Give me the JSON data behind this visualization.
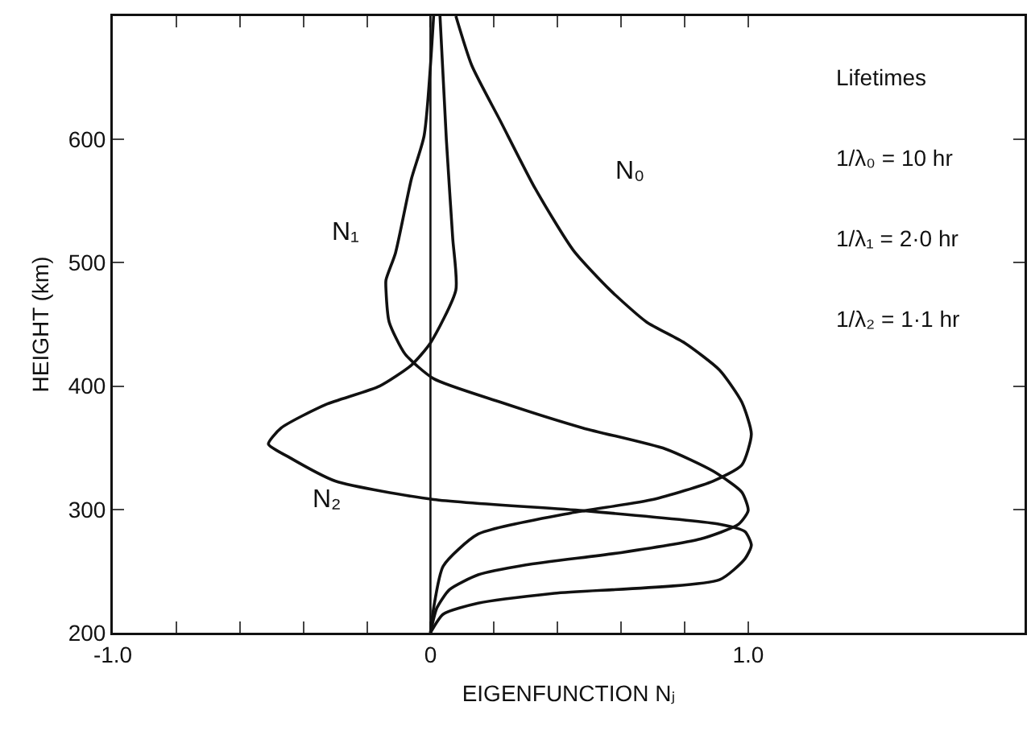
{
  "chart_data": {
    "type": "line",
    "xlabel": "EIGENFUNCTION Nⱼ",
    "ylabel": "HEIGHT (km)",
    "xlim": [
      -1.0,
      1.87
    ],
    "ylim": [
      200,
      700
    ],
    "xticks": [
      {
        "value": -1.0,
        "label": "-1.0"
      },
      {
        "value": -0.8,
        "label": null
      },
      {
        "value": -0.6,
        "label": null
      },
      {
        "value": -0.4,
        "label": null
      },
      {
        "value": -0.2,
        "label": null
      },
      0,
      {
        "value": 0.2,
        "label": null
      },
      {
        "value": 0.4,
        "label": null
      },
      {
        "value": 0.6,
        "label": null
      },
      {
        "value": 0.8,
        "label": null
      },
      {
        "value": 1.0,
        "label": "1.0"
      }
    ],
    "yticks": [
      200,
      300,
      400,
      500,
      600
    ],
    "grid": false,
    "marker": "none",
    "line_style": "solid",
    "series": [
      {
        "name": "N₀",
        "color": "#111111",
        "x": [
          0,
          0.01,
          0.04,
          0.15,
          0.44,
          0.7,
          0.89,
          0.98,
          1.01,
          0.98,
          0.91,
          0.8,
          0.68,
          0.565,
          0.45,
          0.33,
          0.22,
          0.13,
          0.08
        ],
        "values": [
          200,
          220,
          254,
          280,
          297,
          308,
          323,
          336,
          361,
          387,
          413,
          435,
          452,
          478,
          510,
          560,
          615,
          660,
          700
        ]
      },
      {
        "name": "N₁",
        "color": "#111111",
        "x": [
          0,
          0.02,
          0.06,
          0.15,
          0.3,
          0.6,
          0.85,
          0.97,
          1.0,
          0.98,
          0.89,
          0.74,
          0.48,
          0.22,
          0.01,
          -0.08,
          -0.13,
          -0.14,
          -0.14,
          -0.11,
          -0.06,
          -0.02,
          0.01
        ],
        "values": [
          200,
          220,
          235,
          247,
          255,
          265,
          276,
          288,
          299,
          314,
          331,
          349,
          366,
          387,
          406,
          426,
          452,
          478,
          486,
          508,
          568,
          603,
          700
        ]
      },
      {
        "name": "N₂",
        "color": "#111111",
        "x": [
          0,
          0.04,
          0.15,
          0.39,
          0.91,
          0.99,
          1.01,
          0.99,
          0.91,
          0.48,
          0.01,
          -0.3,
          -0.45,
          -0.51,
          -0.47,
          -0.33,
          -0.16,
          -0.06,
          0,
          0.08,
          0.07,
          0.05,
          0.03
        ],
        "values": [
          200,
          215,
          224,
          232,
          243,
          260,
          271,
          282,
          288,
          299,
          308,
          323,
          343,
          353,
          366,
          385,
          400,
          417,
          435,
          478,
          520,
          600,
          700
        ]
      }
    ],
    "ref_lines": [
      {
        "axis": "x",
        "value": 0
      }
    ],
    "annotations": [
      "Lifetimes",
      "1/λ₀ = 10 hr",
      "1/λ₁ = 2·0 hr",
      "1/λ₂ = 1·1 hr"
    ]
  }
}
